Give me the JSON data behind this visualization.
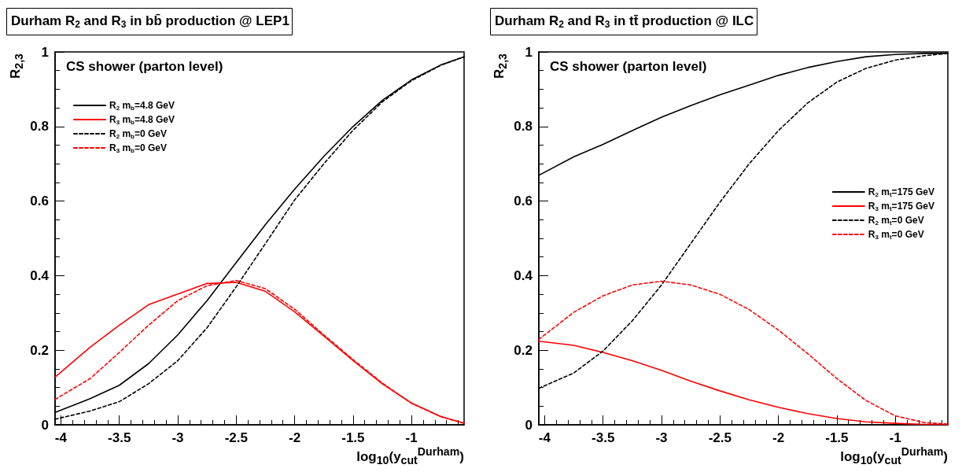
{
  "chart_data": [
    {
      "type": "line",
      "title": "Durham R$_{2}$ and R$_{3}$ in bb̄ production @ LEP1",
      "xlabel": "log$_{10}$(y$_{cut}$$^{Durham}$)",
      "ylabel": "R$_{2,3}$",
      "annotations": [
        "CS shower (parton level)"
      ],
      "x": [
        -4.05,
        -3.75,
        -3.5,
        -3.25,
        -3,
        -2.75,
        -2.5,
        -2.25,
        -2,
        -1.75,
        -1.5,
        -1.25,
        -1,
        -0.75,
        -0.55
      ],
      "series": [
        {
          "name": "R$_{2}$ m$_{b}$=4.8 GeV",
          "color": "#000000",
          "line_style": "solid",
          "values": [
            0.033,
            0.07,
            0.106,
            0.164,
            0.241,
            0.333,
            0.435,
            0.537,
            0.632,
            0.72,
            0.8,
            0.87,
            0.925,
            0.965,
            0.987
          ]
        },
        {
          "name": "R$_{3}$ m$_{b}$=4.8 GeV",
          "color": "#ff0000",
          "line_style": "solid",
          "values": [
            0.128,
            0.208,
            0.267,
            0.322,
            0.351,
            0.379,
            0.382,
            0.358,
            0.303,
            0.238,
            0.172,
            0.11,
            0.058,
            0.022,
            0.004
          ]
        },
        {
          "name": "R$_{2}$ m$_{b}$=0 GeV",
          "color": "#000000",
          "line_style": "dashed",
          "values": [
            0.015,
            0.037,
            0.062,
            0.11,
            0.172,
            0.26,
            0.37,
            0.486,
            0.603,
            0.7,
            0.79,
            0.866,
            0.923,
            0.964,
            0.987
          ]
        },
        {
          "name": "R$_{3}$ m$_{b}$=0 GeV",
          "color": "#ff0000",
          "line_style": "dashed",
          "values": [
            0.068,
            0.124,
            0.194,
            0.267,
            0.333,
            0.373,
            0.387,
            0.365,
            0.31,
            0.241,
            0.175,
            0.112,
            0.058,
            0.022,
            0.004
          ]
        }
      ],
      "xlim": [
        -4.05,
        -0.55
      ],
      "xticks": [
        -4,
        -3.5,
        -3,
        -2.5,
        -2,
        -1.5,
        -1
      ],
      "ylim": [
        0,
        1
      ],
      "yticks": [
        0,
        0.2,
        0.4,
        0.6,
        0.8,
        1
      ],
      "grid": false,
      "legend": "top left",
      "marker": "none"
    },
    {
      "type": "line",
      "title": "Durham R$_{2}$ and R$_{3}$ in tt̄ production @ ILC",
      "xlabel": "log$_{10}$(y$_{cut}$$^{Durham}$)",
      "ylabel": "R$_{2,3}$",
      "annotations": [
        "CS shower (parton level)"
      ],
      "x": [
        -4.05,
        -3.75,
        -3.5,
        -3.25,
        -3,
        -2.75,
        -2.5,
        -2.25,
        -2,
        -1.75,
        -1.5,
        -1.25,
        -1,
        -0.75,
        -0.55
      ],
      "series": [
        {
          "name": "R$_{2}$ m$_{t}$=175 GeV",
          "color": "#000000",
          "line_style": "solid",
          "values": [
            0.669,
            0.719,
            0.752,
            0.789,
            0.825,
            0.856,
            0.885,
            0.911,
            0.937,
            0.958,
            0.974,
            0.987,
            0.993,
            0.996,
            0.996
          ]
        },
        {
          "name": "R$_{3}$ m$_{t}$=175 GeV",
          "color": "#ff0000",
          "line_style": "solid",
          "values": [
            0.224,
            0.213,
            0.194,
            0.172,
            0.146,
            0.117,
            0.091,
            0.067,
            0.047,
            0.03,
            0.017,
            0.008,
            0.004,
            0.001,
            0.001
          ]
        },
        {
          "name": "R$_{2}$ m$_{t}$=0 GeV",
          "color": "#000000",
          "line_style": "dashed",
          "values": [
            0.098,
            0.139,
            0.198,
            0.279,
            0.375,
            0.486,
            0.597,
            0.7,
            0.789,
            0.863,
            0.919,
            0.956,
            0.978,
            0.99,
            0.996
          ]
        },
        {
          "name": "R$_{3}$ m$_{t}$=0 GeV",
          "color": "#ff0000",
          "line_style": "dashed",
          "values": [
            0.229,
            0.302,
            0.346,
            0.375,
            0.385,
            0.375,
            0.35,
            0.309,
            0.254,
            0.191,
            0.124,
            0.065,
            0.024,
            0.006,
            0.002
          ]
        }
      ],
      "xlim": [
        -4.05,
        -0.55
      ],
      "xticks": [
        -4,
        -3.5,
        -3,
        -2.5,
        -2,
        -1.5,
        -1
      ],
      "ylim": [
        0,
        1
      ],
      "yticks": [
        0,
        0.2,
        0.4,
        0.6,
        0.8,
        1
      ],
      "grid": false,
      "legend": "right",
      "marker": "none"
    }
  ]
}
